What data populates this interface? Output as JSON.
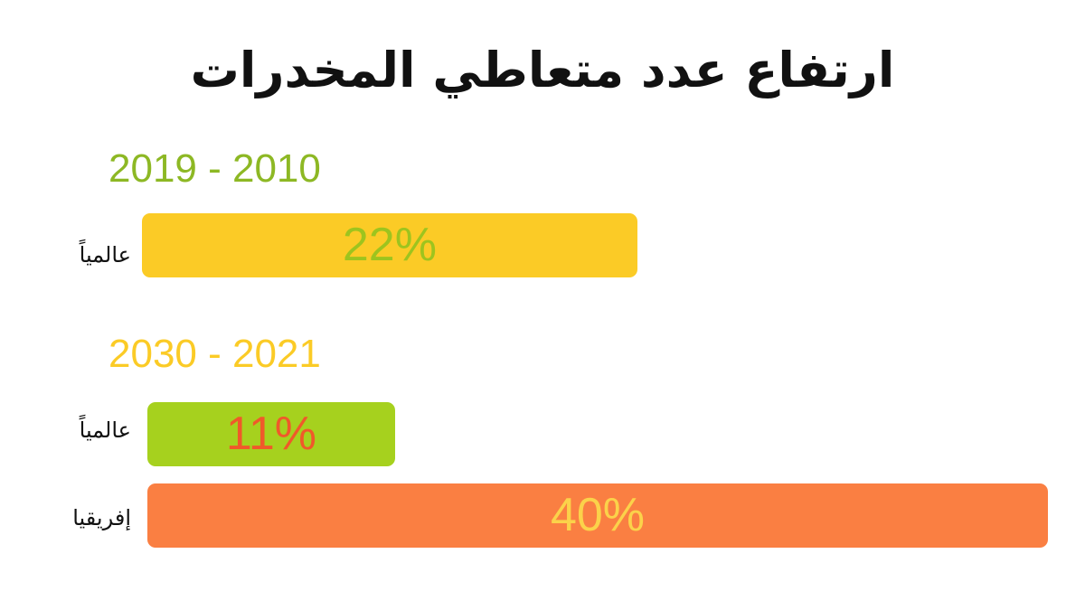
{
  "chart_data": {
    "type": "bar",
    "orientation": "horizontal",
    "title": "ارتفاع عدد متعاطي المخدرات",
    "xlim": [
      0,
      40
    ],
    "groups": [
      {
        "period": "2019 - 2010",
        "period_color": "#8DB824",
        "bars": [
          {
            "label": "عالمياً",
            "value": 22,
            "value_label": "22%",
            "bar_color": "#FBCB26",
            "text_color": "#9DC41E"
          }
        ]
      },
      {
        "period": "2030 - 2021",
        "period_color": "#FBCB26",
        "bars": [
          {
            "label": "عالمياً",
            "value": 11,
            "value_label": "11%",
            "bar_color": "#A6D11E",
            "text_color": "#F0592A"
          },
          {
            "label": "إفريقيا",
            "value": 40,
            "value_label": "40%",
            "bar_color": "#FA7F42",
            "text_color": "#FBD24A"
          }
        ]
      }
    ]
  }
}
